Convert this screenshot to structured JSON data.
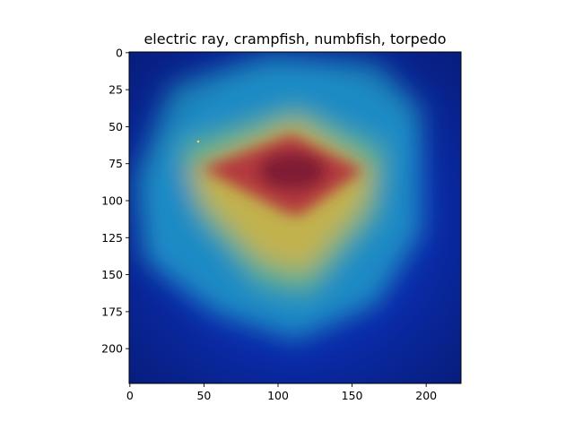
{
  "chart_data": {
    "type": "heatmap",
    "title": "electric ray, crampfish, numbfish, torpedo",
    "xlabel": "",
    "ylabel": "",
    "x_range": [
      0,
      224
    ],
    "y_range": [
      0,
      224
    ],
    "y_inverted": true,
    "grid": false,
    "colormap": "jet",
    "x_ticks": [
      0,
      50,
      100,
      150,
      200
    ],
    "y_ticks": [
      0,
      25,
      50,
      75,
      100,
      125,
      150,
      175,
      200
    ],
    "hotspot": {
      "x": 110,
      "y": 80,
      "intensity": 1.0
    }
  }
}
